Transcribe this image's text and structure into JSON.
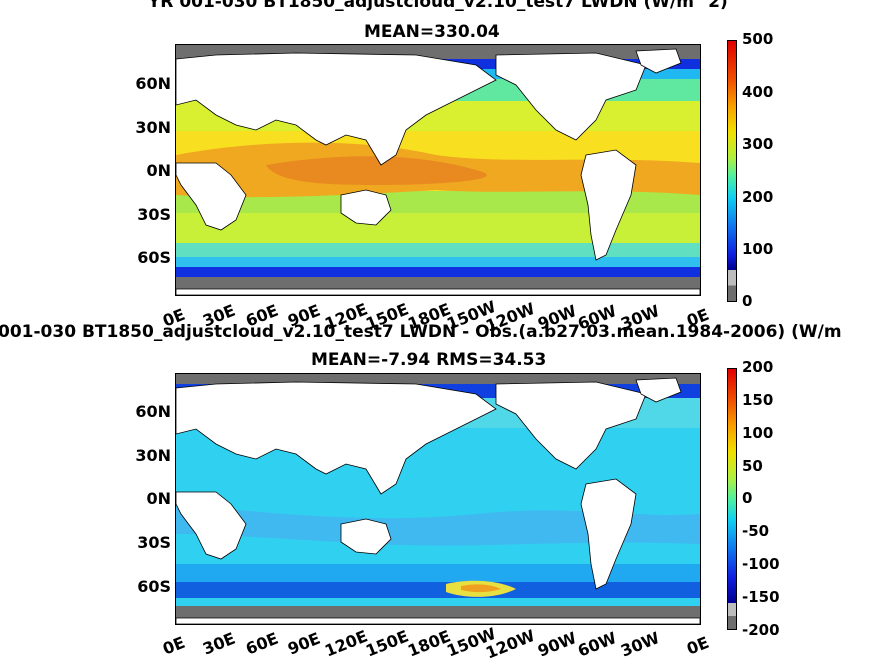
{
  "panels": [
    {
      "title_line1": "YR 001-030 BT1850_adjustcloud_v2.10_test7 LWDN (W/m^2)",
      "title_line2": "MEAN=330.04",
      "lat_labels": [
        "60N",
        "30N",
        "0N",
        "30S",
        "60S"
      ],
      "lon_labels": [
        "0E",
        "30E",
        "60E",
        "90E",
        "120E",
        "150E",
        "180E",
        "150W",
        "120W",
        "90W",
        "60W",
        "30W",
        "0E"
      ],
      "colorbar_ticks": [
        "500",
        "400",
        "300",
        "200",
        "100",
        "0"
      ]
    },
    {
      "title_line1": "001-030 BT1850_adjustcloud_v2.10_test7 LWDN - Obs.(a.b27.03.mean.1984-2006) (W/m",
      "title_line2": "MEAN=-7.94 RMS=34.53",
      "lat_labels": [
        "60N",
        "30N",
        "0N",
        "30S",
        "60S"
      ],
      "lon_labels": [
        "0E",
        "30E",
        "60E",
        "90E",
        "120E",
        "150E",
        "180E",
        "150W",
        "120W",
        "90W",
        "60W",
        "30W",
        "0E"
      ],
      "colorbar_ticks": [
        "200",
        "150",
        "100",
        "50",
        "0",
        "-50",
        "-100",
        "-150",
        "-200"
      ]
    }
  ],
  "colors": {
    "land": "#ffffff",
    "missing": "#6e6e6e"
  }
}
